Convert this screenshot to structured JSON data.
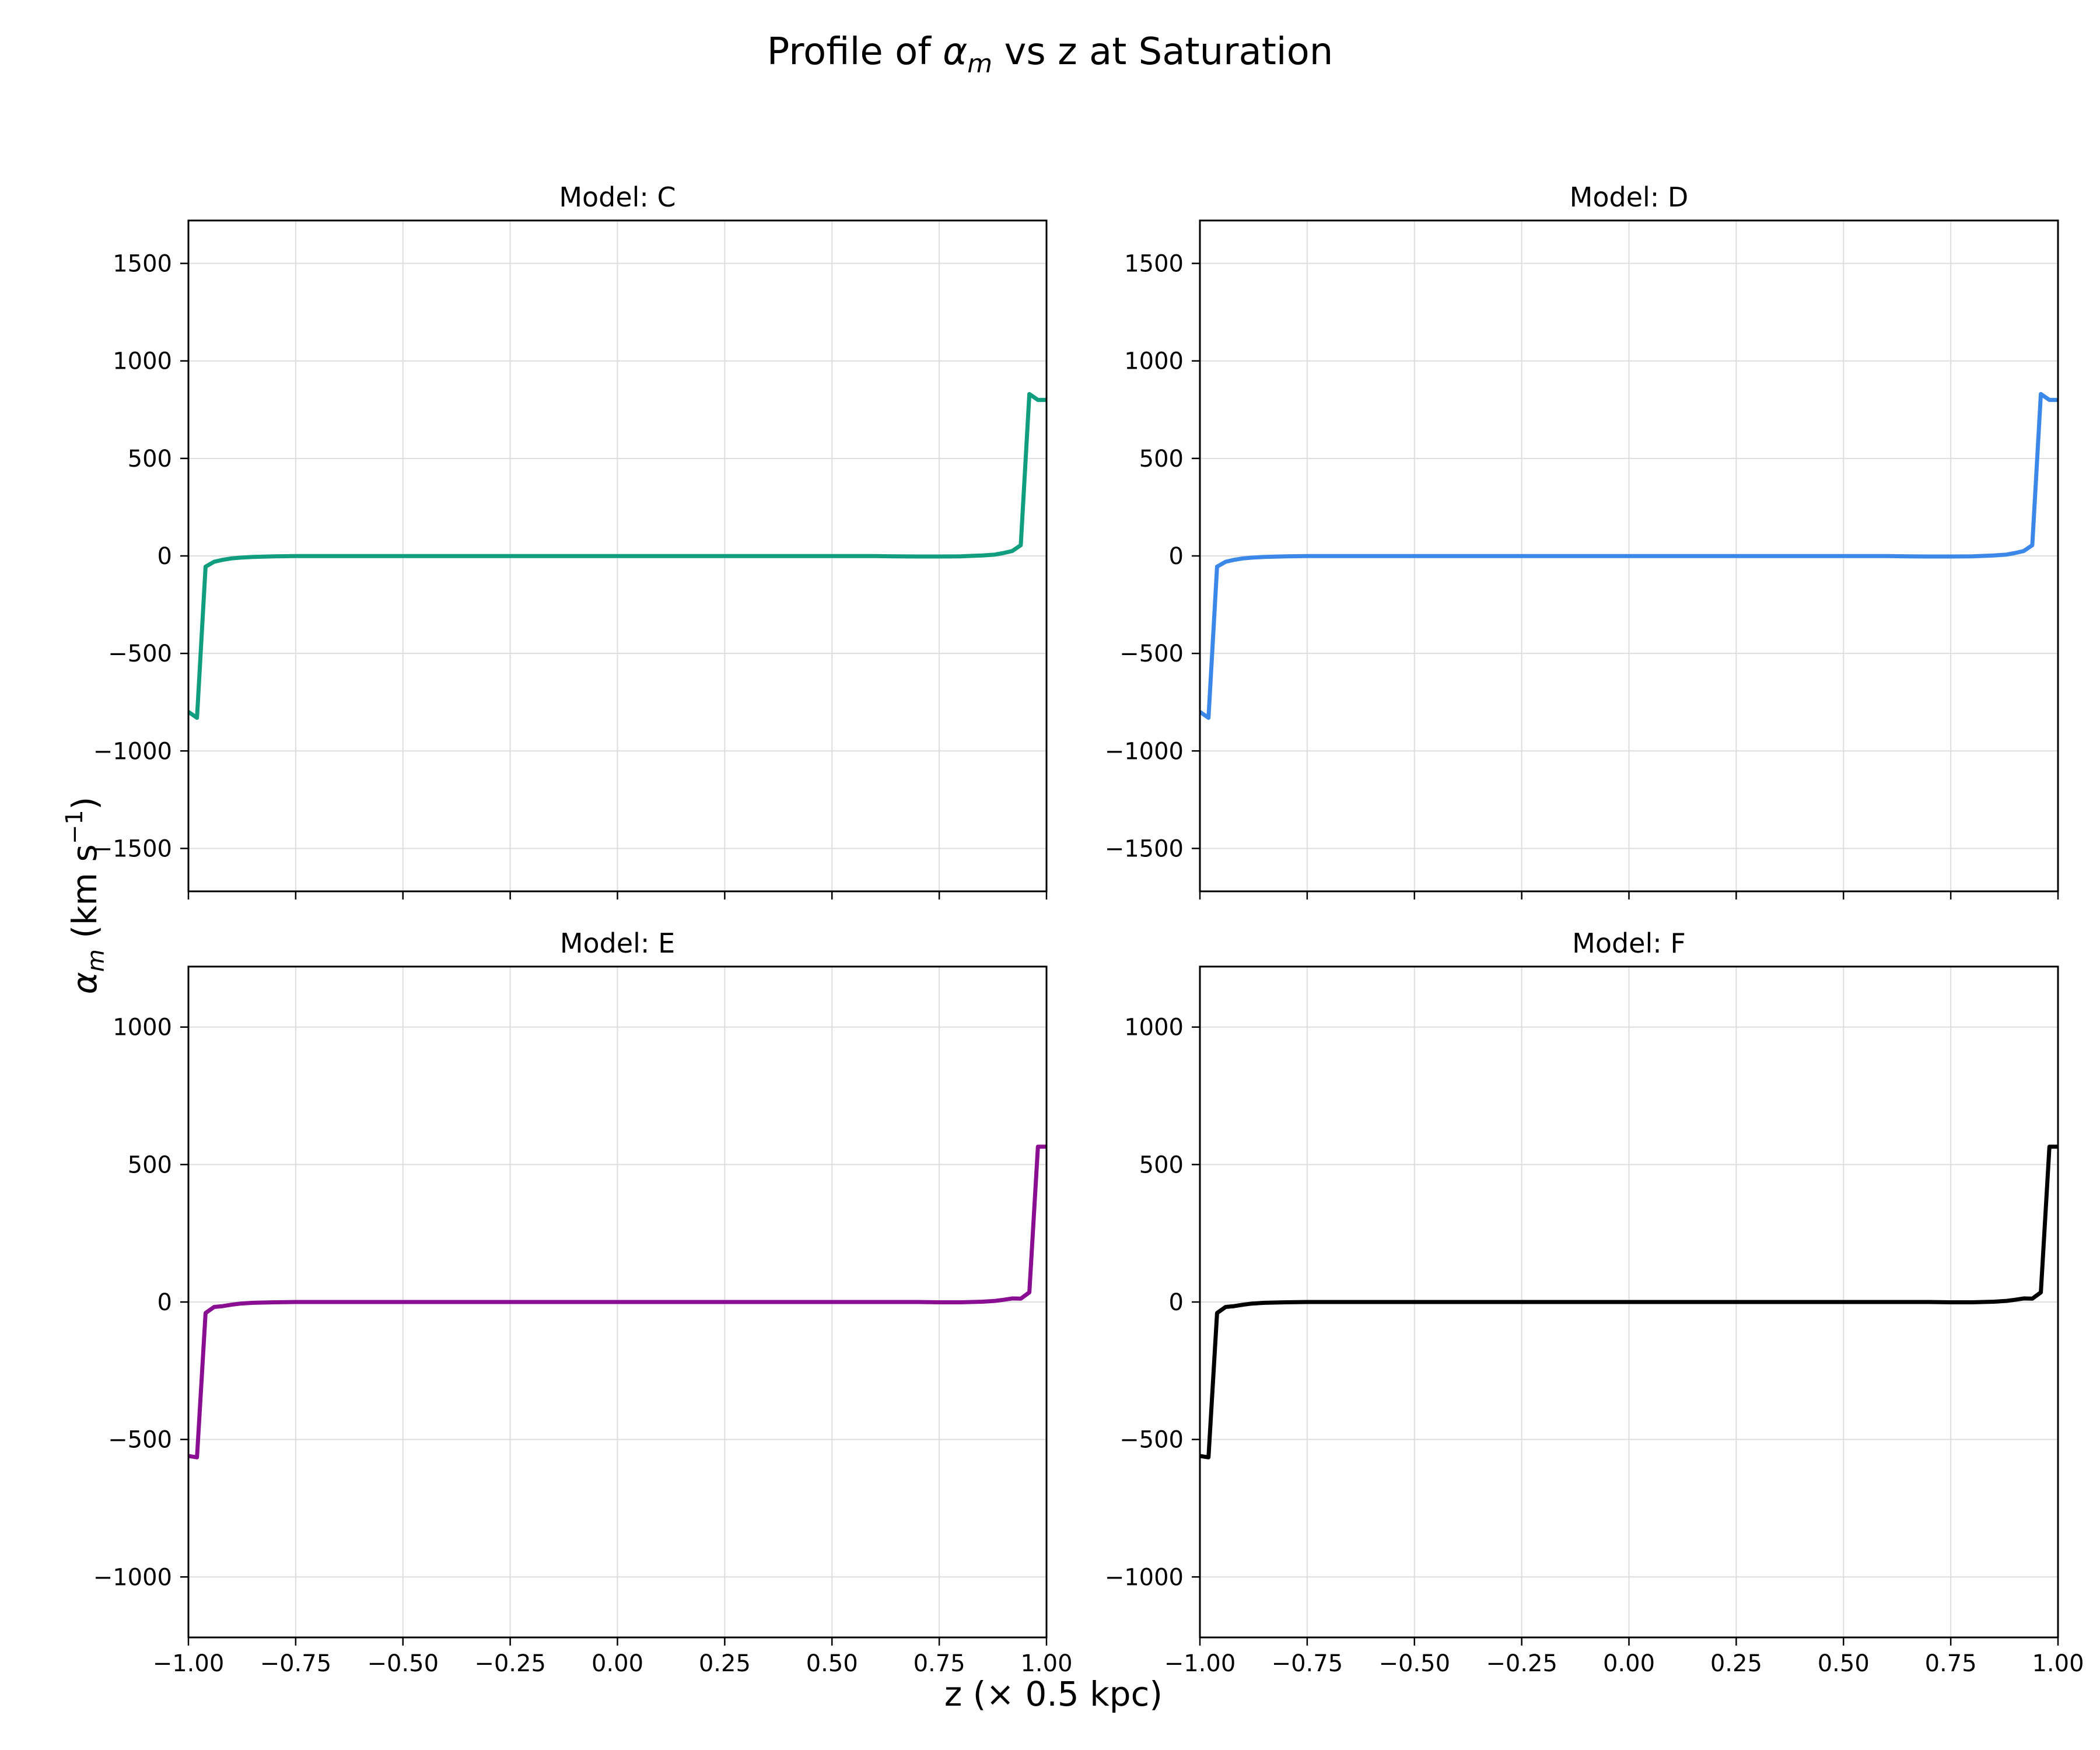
{
  "figure": {
    "title_prefix": "Profile of ",
    "title_symbol": "α",
    "title_subscript": "m",
    "title_suffix": " vs z at Saturation",
    "xlabel": "z (× 0.5 kpc)",
    "ylabel_symbol": "α",
    "ylabel_subscript": "m",
    "ylabel_unit": " (km s",
    "ylabel_exponent": "−1",
    "ylabel_close": ")"
  },
  "chart_data": [
    {
      "type": "line",
      "title": "Model: C",
      "color": "#109e7e",
      "xlim": [
        -1.0,
        1.0
      ],
      "ylim": [
        -1720,
        1720
      ],
      "xticks": [
        -1.0,
        -0.75,
        -0.5,
        -0.25,
        0.0,
        0.25,
        0.5,
        0.75,
        1.0
      ],
      "xtick_labels": [],
      "yticks": [
        -1500,
        -1000,
        -500,
        0,
        500,
        1000,
        1500
      ],
      "ytick_labels": [
        "−1500",
        "−1000",
        "−500",
        "0",
        "500",
        "1000",
        "1500"
      ],
      "grid": true,
      "series": [
        {
          "x": [
            -1.0,
            -0.98,
            -0.96,
            -0.94,
            -0.92,
            -0.9,
            -0.88,
            -0.85,
            -0.8,
            -0.75,
            -0.7,
            -0.6,
            -0.5,
            -0.4,
            -0.3,
            -0.2,
            -0.1,
            0.0,
            0.1,
            0.2,
            0.3,
            0.4,
            0.5,
            0.55,
            0.6,
            0.65,
            0.7,
            0.75,
            0.8,
            0.85,
            0.88,
            0.9,
            0.92,
            0.94,
            0.96,
            0.98,
            1.0
          ],
          "y": [
            -800,
            -830,
            -55,
            -30,
            -20,
            -13,
            -9,
            -5,
            -2,
            -1,
            -1,
            -1,
            -1,
            -1,
            -1,
            -1,
            -1,
            -1,
            -1,
            -1,
            -1,
            -1,
            -1,
            -1,
            -1,
            -2,
            -3,
            -3,
            -2,
            2,
            7,
            15,
            25,
            55,
            830,
            800,
            800
          ]
        }
      ]
    },
    {
      "type": "line",
      "title": "Model: D",
      "color": "#3b88e9",
      "xlim": [
        -1.0,
        1.0
      ],
      "ylim": [
        -1720,
        1720
      ],
      "xticks": [
        -1.0,
        -0.75,
        -0.5,
        -0.25,
        0.0,
        0.25,
        0.5,
        0.75,
        1.0
      ],
      "xtick_labels": [],
      "yticks": [
        -1500,
        -1000,
        -500,
        0,
        500,
        1000,
        1500
      ],
      "ytick_labels": [
        "−1500",
        "−1000",
        "−500",
        "0",
        "500",
        "1000",
        "1500"
      ],
      "grid": true,
      "series": [
        {
          "x": [
            -1.0,
            -0.98,
            -0.96,
            -0.94,
            -0.92,
            -0.9,
            -0.88,
            -0.85,
            -0.8,
            -0.75,
            -0.7,
            -0.6,
            -0.5,
            -0.4,
            -0.3,
            -0.2,
            -0.1,
            0.0,
            0.1,
            0.2,
            0.3,
            0.4,
            0.5,
            0.55,
            0.6,
            0.65,
            0.7,
            0.75,
            0.8,
            0.85,
            0.88,
            0.9,
            0.92,
            0.94,
            0.96,
            0.98,
            1.0
          ],
          "y": [
            -800,
            -830,
            -55,
            -30,
            -20,
            -13,
            -9,
            -5,
            -2,
            -1,
            -1,
            -1,
            -1,
            -1,
            -1,
            -1,
            -1,
            -1,
            -1,
            -1,
            -1,
            -1,
            -1,
            -1,
            -1,
            -2,
            -3,
            -3,
            -2,
            2,
            7,
            15,
            25,
            55,
            830,
            800,
            800
          ]
        }
      ]
    },
    {
      "type": "line",
      "title": "Model: E",
      "color": "#8a0e91",
      "xlim": [
        -1.0,
        1.0
      ],
      "ylim": [
        -1220,
        1220
      ],
      "xticks": [
        -1.0,
        -0.75,
        -0.5,
        -0.25,
        0.0,
        0.25,
        0.5,
        0.75,
        1.0
      ],
      "xtick_labels": [
        "−1.00",
        "−0.75",
        "−0.50",
        "−0.25",
        "0.00",
        "0.25",
        "0.50",
        "0.75",
        "1.00"
      ],
      "yticks": [
        -1000,
        -500,
        0,
        500,
        1000
      ],
      "ytick_labels": [
        "−1000",
        "−500",
        "0",
        "500",
        "1000"
      ],
      "grid": true,
      "series": [
        {
          "x": [
            -1.0,
            -0.98,
            -0.96,
            -0.94,
            -0.92,
            -0.9,
            -0.88,
            -0.85,
            -0.8,
            -0.75,
            -0.7,
            -0.6,
            -0.5,
            -0.4,
            -0.3,
            -0.2,
            -0.1,
            0.0,
            0.1,
            0.2,
            0.3,
            0.4,
            0.5,
            0.6,
            0.7,
            0.75,
            0.8,
            0.85,
            0.88,
            0.9,
            0.92,
            0.94,
            0.96,
            0.98,
            1.0
          ],
          "y": [
            -560,
            -565,
            -40,
            -18,
            -15,
            -10,
            -6,
            -3,
            -1,
            0,
            0,
            0,
            0,
            0,
            0,
            0,
            0,
            0,
            0,
            0,
            0,
            0,
            0,
            0,
            0,
            -1,
            -1,
            1,
            4,
            8,
            13,
            12,
            35,
            565,
            565
          ]
        }
      ]
    },
    {
      "type": "line",
      "title": "Model: F",
      "color": "#000000",
      "xlim": [
        -1.0,
        1.0
      ],
      "ylim": [
        -1220,
        1220
      ],
      "xticks": [
        -1.0,
        -0.75,
        -0.5,
        -0.25,
        0.0,
        0.25,
        0.5,
        0.75,
        1.0
      ],
      "xtick_labels": [
        "−1.00",
        "−0.75",
        "−0.50",
        "−0.25",
        "0.00",
        "0.25",
        "0.50",
        "0.75",
        "1.00"
      ],
      "yticks": [
        -1000,
        -500,
        0,
        500,
        1000
      ],
      "ytick_labels": [
        "−1000",
        "−500",
        "0",
        "500",
        "1000"
      ],
      "grid": true,
      "series": [
        {
          "x": [
            -1.0,
            -0.98,
            -0.96,
            -0.94,
            -0.92,
            -0.9,
            -0.88,
            -0.85,
            -0.8,
            -0.75,
            -0.7,
            -0.6,
            -0.5,
            -0.4,
            -0.3,
            -0.2,
            -0.1,
            0.0,
            0.1,
            0.2,
            0.3,
            0.4,
            0.5,
            0.6,
            0.7,
            0.75,
            0.8,
            0.85,
            0.88,
            0.9,
            0.92,
            0.94,
            0.96,
            0.98,
            1.0
          ],
          "y": [
            -560,
            -565,
            -40,
            -18,
            -15,
            -10,
            -6,
            -3,
            -1,
            0,
            0,
            0,
            0,
            0,
            0,
            0,
            0,
            0,
            0,
            0,
            0,
            0,
            0,
            0,
            0,
            -1,
            -1,
            1,
            4,
            8,
            13,
            12,
            35,
            565,
            565
          ]
        }
      ]
    }
  ]
}
